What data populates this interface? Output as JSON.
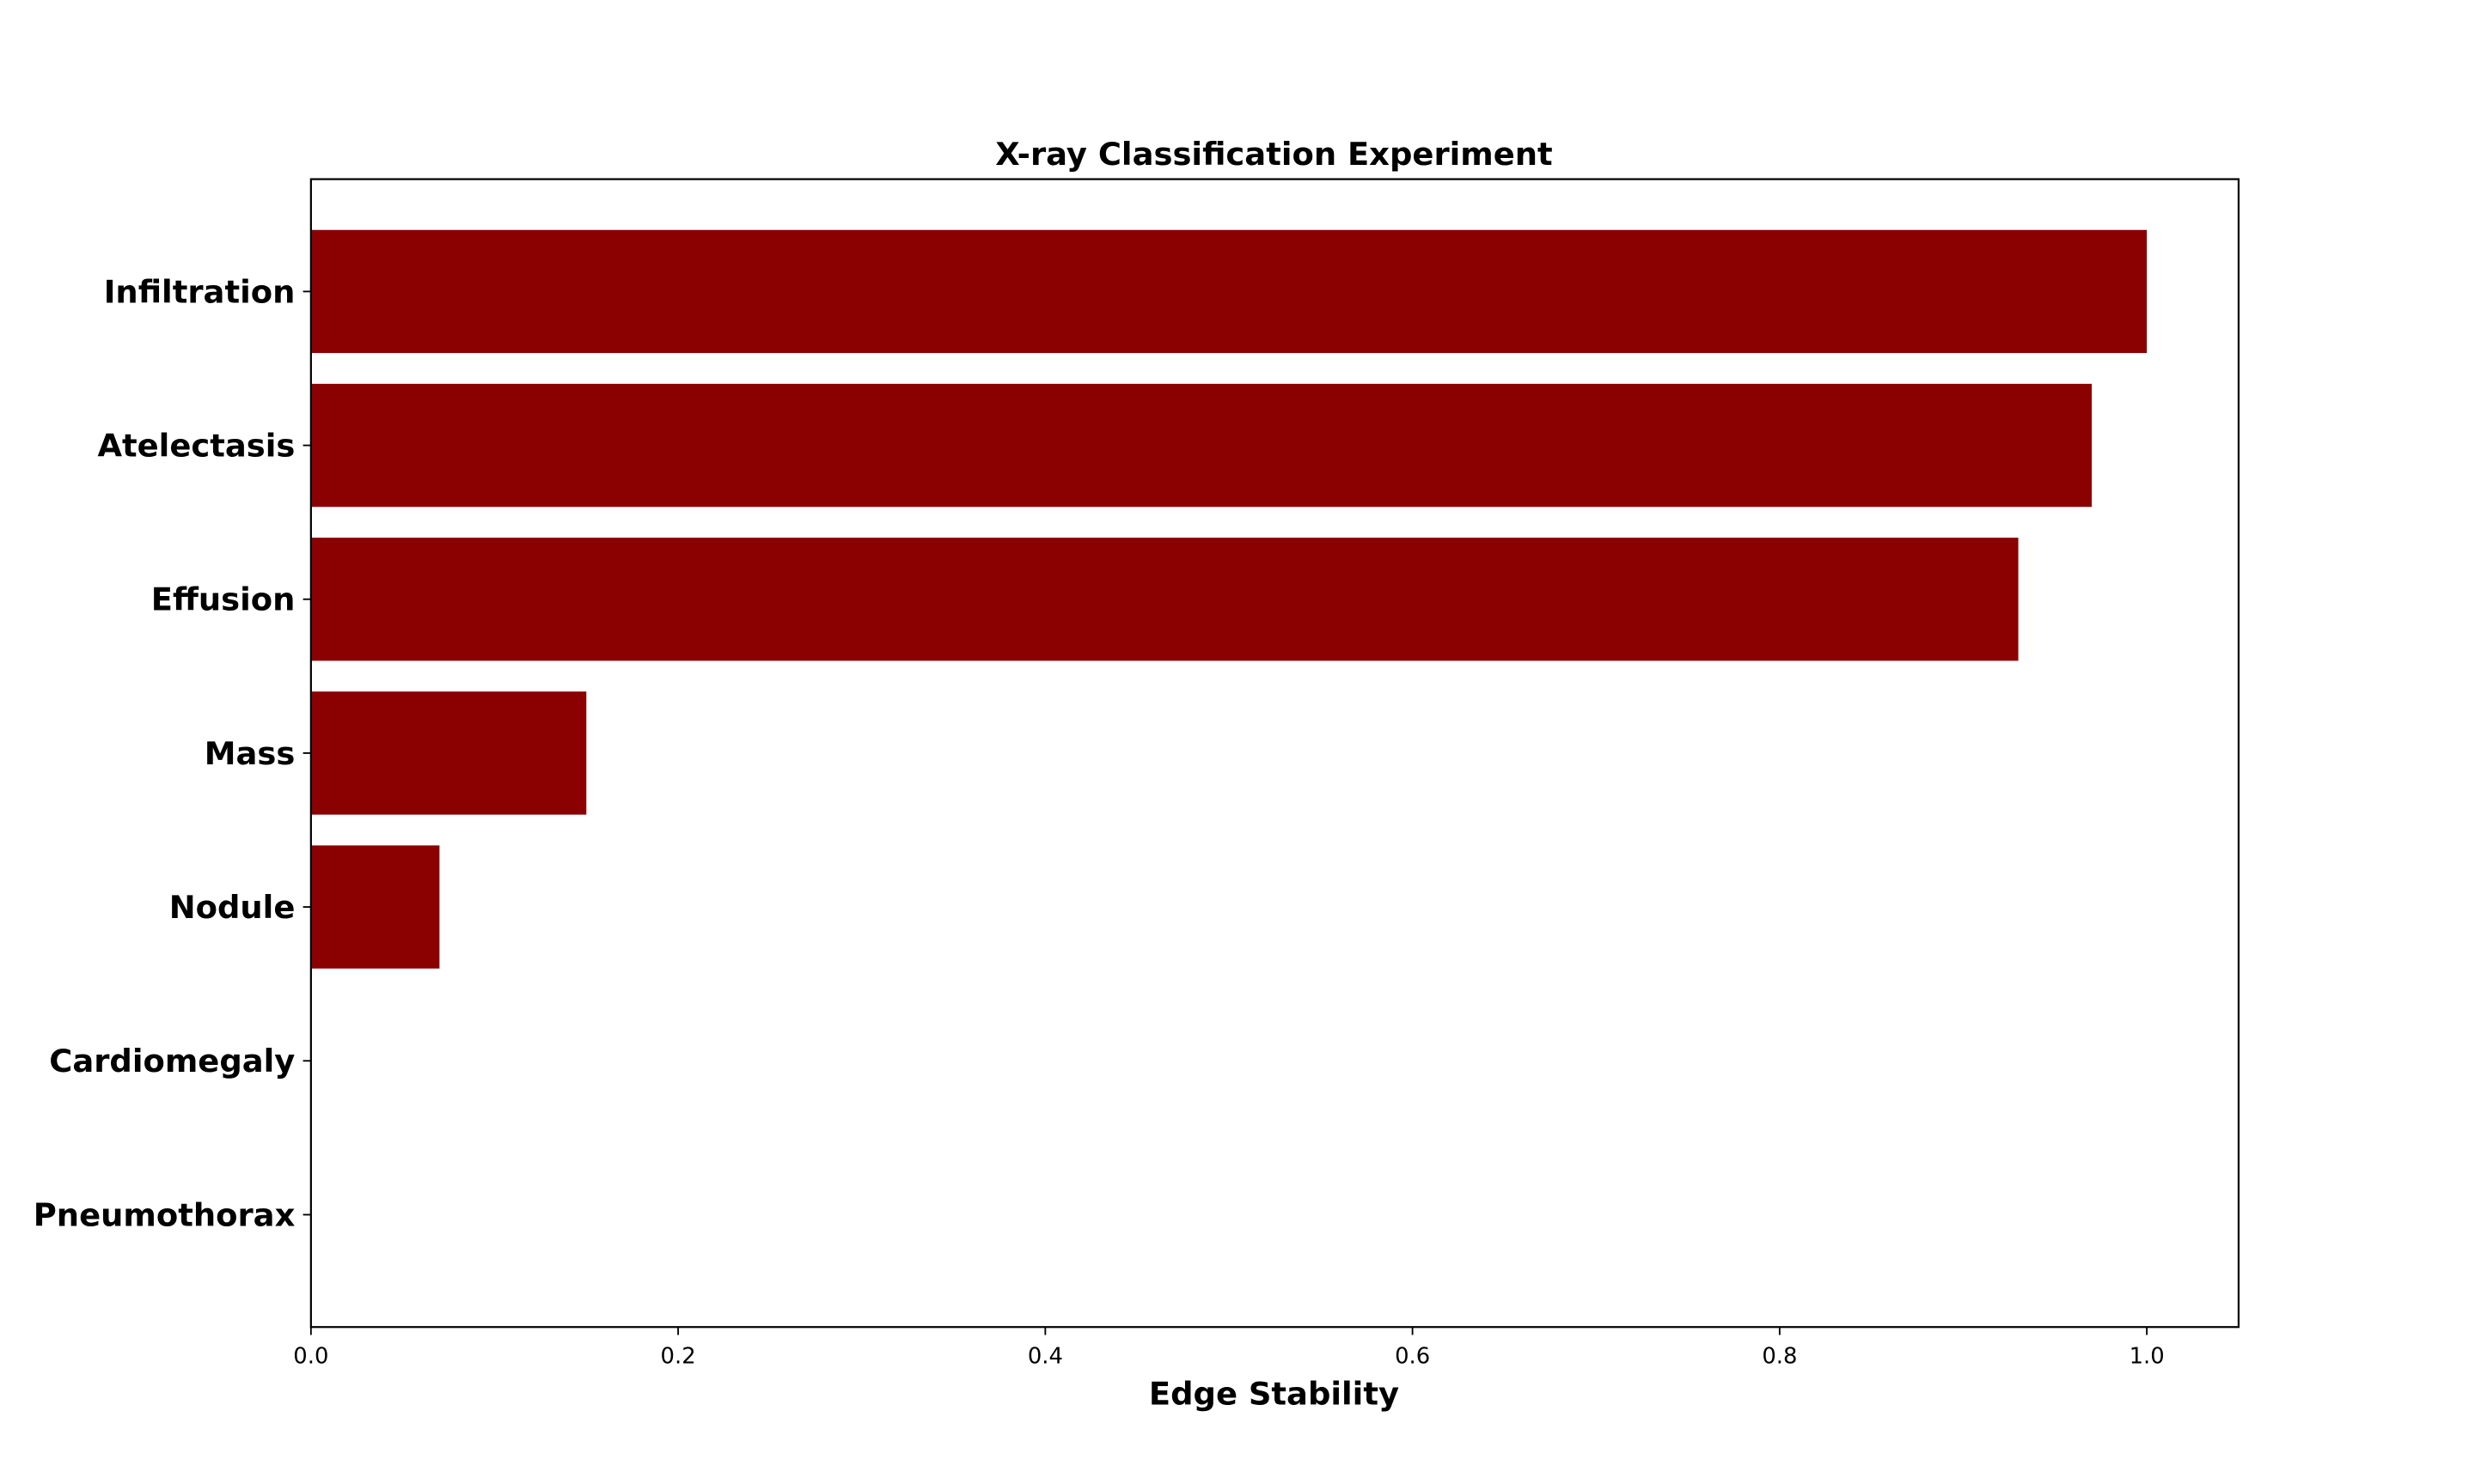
{
  "chart_data": {
    "type": "barh",
    "title": "X-ray Classification Experiment",
    "xlabel": "Edge Stability",
    "categories": [
      "Infiltration",
      "Atelectasis",
      "Effusion",
      "Mass",
      "Nodule",
      "Cardiomegaly",
      "Pneumothorax"
    ],
    "values": [
      1.0,
      0.97,
      0.93,
      0.15,
      0.07,
      0,
      0
    ],
    "color": "#8b0000",
    "xlim": [
      0,
      1.05
    ],
    "xticks": [
      {
        "value": 0,
        "label": "0.0"
      },
      0.2,
      0.4,
      0.6,
      0.8,
      {
        "value": 1,
        "label": "1.0"
      }
    ]
  }
}
